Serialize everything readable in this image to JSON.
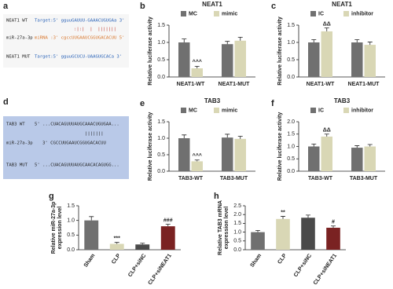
{
  "panel_a": {
    "letter": "a",
    "wt_name": "NEAT1 WT",
    "wt_seq": "Target:5' gguuGAUUU-GAAACUGUGAa 3'",
    "match": ":|:|  |  |||||||",
    "mirna_name": "miR-27a-3p",
    "mirna_seq": "miRNA :3' cgccUUGAAUCGGUGACACUU 5'",
    "mut_name": "NEAT1 MUT",
    "mut_seq": "Target:5' gguuGCUCU-UAAGUGCACa 3'"
  },
  "panel_d": {
    "letter": "d",
    "wt_name": "TAB3 WT",
    "wt_seq": "5' ...CUACAGUUUAUGCAAACUGUGAA...",
    "match": "|||||||",
    "mirna_name": "miR-27a-3p",
    "mirna_seq": "3' CGCCUUGAAUCGGUGACACUU",
    "mut_name": "TAB3 MUT",
    "mut_seq": "5' ...CUACAGUUUAUGCAACACAGUGG..."
  },
  "chart_data": [
    {
      "type": "bar",
      "letter": "b",
      "title": "NEAT1",
      "ylabel": [
        "Relative luciferase activity"
      ],
      "categories": [
        "NEAT1-WT",
        "NEAT1-MUT"
      ],
      "series": [
        {
          "name": "MC",
          "color": "#707070",
          "values": [
            1.0,
            0.95
          ],
          "errors": [
            0.1,
            0.08
          ],
          "annotations": [
            null,
            null
          ]
        },
        {
          "name": "mimic",
          "color": "#d9d7b5",
          "values": [
            0.25,
            1.05
          ],
          "errors": [
            0.06,
            0.1
          ],
          "annotations": [
            "^^^",
            null
          ]
        }
      ],
      "ylim": [
        0,
        1.5
      ],
      "yticks": [
        {
          "value": 0,
          "label": "0.0"
        },
        0.5,
        {
          "value": 1,
          "label": "1.0"
        },
        1.5
      ]
    },
    {
      "type": "bar",
      "letter": "c",
      "title": "NEAT1",
      "ylabel": [
        "Relative luciferase activity"
      ],
      "categories": [
        "NEAT1-WT",
        "NEAT1-MUT"
      ],
      "series": [
        {
          "name": "IC",
          "color": "#707070",
          "values": [
            1.0,
            1.0
          ],
          "errors": [
            0.08,
            0.08
          ],
          "annotations": [
            null,
            null
          ]
        },
        {
          "name": "inhibitor",
          "color": "#d9d7b5",
          "values": [
            1.32,
            0.93
          ],
          "errors": [
            0.1,
            0.08
          ],
          "annotations": [
            "ΔΔ",
            null
          ]
        }
      ],
      "ylim": [
        0,
        1.5
      ],
      "yticks": [
        {
          "value": 0,
          "label": "0.0"
        },
        0.5,
        {
          "value": 1,
          "label": "1.0"
        },
        1.5
      ]
    },
    {
      "type": "bar",
      "letter": "e",
      "title": "TAB3",
      "ylabel": [
        "Relative luciferase activity"
      ],
      "categories": [
        "TAB3-WT",
        "TAB3-MUT"
      ],
      "series": [
        {
          "name": "MC",
          "color": "#707070",
          "values": [
            1.0,
            1.02
          ],
          "errors": [
            0.1,
            0.1
          ],
          "annotations": [
            null,
            null
          ]
        },
        {
          "name": "mimic",
          "color": "#d9d7b5",
          "values": [
            0.3,
            0.98
          ],
          "errors": [
            0.04,
            0.08
          ],
          "annotations": [
            "^^^",
            null
          ]
        }
      ],
      "ylim": [
        0,
        1.5
      ],
      "yticks": [
        {
          "value": 0,
          "label": "0.0"
        },
        0.5,
        {
          "value": 1,
          "label": "1.0"
        },
        1.5
      ]
    },
    {
      "type": "bar",
      "letter": "f",
      "title": "TAB3",
      "ylabel": [
        "Relative luciferase activity"
      ],
      "categories": [
        "TAB3-WT",
        "TAB3-MUT"
      ],
      "series": [
        {
          "name": "IC",
          "color": "#707070",
          "values": [
            1.0,
            0.95
          ],
          "errors": [
            0.1,
            0.08
          ],
          "annotations": [
            null,
            null
          ]
        },
        {
          "name": "inhibitor",
          "color": "#d9d7b5",
          "values": [
            1.4,
            1.0
          ],
          "errors": [
            0.1,
            0.08
          ],
          "annotations": [
            "ΔΔ",
            null
          ]
        }
      ],
      "ylim": [
        0,
        2.0
      ],
      "yticks": [
        {
          "value": 0,
          "label": "0.0"
        },
        0.5,
        {
          "value": 1,
          "label": "1.0"
        },
        1.5,
        {
          "value": 2,
          "label": "2.0"
        }
      ]
    },
    {
      "type": "bar",
      "letter": "g",
      "ylabel": [
        "Relative miR-27a-3p",
        "expression level"
      ],
      "categories": [
        "Sham",
        "CLP",
        "CLP+siNC",
        "CLP+siNEAT1"
      ],
      "series": [
        {
          "colors": [
            "#707070",
            "#d9d7b5",
            "#4a4a4a",
            "#7a2222"
          ],
          "values": [
            1.0,
            0.2,
            0.18,
            0.8
          ],
          "errors": [
            0.13,
            0.05,
            0.04,
            0.07
          ],
          "annotations": [
            null,
            "***",
            null,
            "###"
          ]
        }
      ],
      "ylim": [
        0,
        1.5
      ],
      "yticks": [
        {
          "value": 0,
          "label": "0.0"
        },
        0.5,
        {
          "value": 1,
          "label": "1.0"
        },
        1.5
      ]
    },
    {
      "type": "bar",
      "letter": "h",
      "ylabel": [
        "Relative TAB3 mRNA",
        "expression level"
      ],
      "categories": [
        "Sham",
        "CLP",
        "CLP+siNC",
        "CLP+siNEAT1"
      ],
      "series": [
        {
          "colors": [
            "#707070",
            "#d9d7b5",
            "#4a4a4a",
            "#7a2222"
          ],
          "values": [
            1.0,
            1.75,
            1.82,
            1.25
          ],
          "errors": [
            0.1,
            0.15,
            0.15,
            0.1
          ],
          "annotations": [
            null,
            "**",
            null,
            "#"
          ]
        }
      ],
      "ylim": [
        0,
        2.5
      ],
      "yticks": [
        {
          "value": 0,
          "label": "0.0"
        },
        0.5,
        {
          "value": 1,
          "label": "1.0"
        },
        1.5,
        {
          "value": 2,
          "label": "2.0"
        },
        2.5
      ]
    }
  ]
}
